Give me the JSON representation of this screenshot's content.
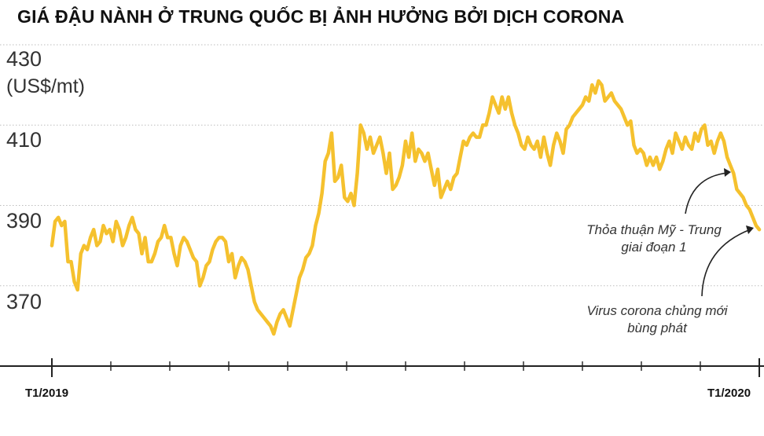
{
  "chart_data": {
    "type": "line",
    "title": "GIÁ ĐẬU NÀNH Ở TRUNG QUỐC BỊ ẢNH HƯỞNG BỞI DỊCH CORONA",
    "ylabel_unit": "(US$/mt)",
    "ylim": [
      350,
      430
    ],
    "yticks": [
      "430",
      "410",
      "390",
      "370"
    ],
    "ytick_values": [
      430,
      410,
      390,
      370
    ],
    "xtick_labels": [
      "T1/2019",
      "T1/2020"
    ],
    "grid": "horizontal-dotted",
    "color": "#F5C12E",
    "series": [
      {
        "values": [
          380,
          386,
          387,
          385,
          386,
          376,
          376,
          371,
          369,
          378,
          380,
          379,
          382,
          384,
          380,
          381,
          385,
          383,
          384,
          381,
          386,
          384,
          380,
          382,
          385,
          387,
          384,
          383,
          378,
          382,
          376,
          376,
          378,
          381,
          382,
          385,
          382,
          382,
          378,
          375,
          380,
          382,
          381,
          379,
          377,
          376,
          370,
          372,
          375,
          376,
          379,
          381,
          382,
          382,
          381,
          376,
          378,
          372,
          375,
          377,
          376,
          374,
          370,
          366,
          364,
          363,
          362,
          361,
          360,
          358,
          361,
          363,
          364,
          362,
          360,
          364,
          368,
          372,
          374,
          377,
          378,
          380,
          385,
          388,
          393,
          401,
          403,
          408,
          396,
          397,
          400,
          392,
          391,
          393,
          390,
          398,
          410,
          408,
          404,
          407,
          403,
          405,
          407,
          403,
          398,
          403,
          394,
          395,
          397,
          400,
          406,
          402,
          408,
          401,
          404,
          403,
          401,
          403,
          399,
          395,
          399,
          392,
          394,
          396,
          394,
          397,
          398,
          402,
          406,
          405,
          407,
          408,
          407,
          407,
          410,
          410,
          413,
          417,
          415,
          413,
          417,
          414,
          417,
          413,
          410,
          408,
          405,
          404,
          407,
          405,
          404,
          406,
          402,
          407,
          403,
          400,
          405,
          408,
          406,
          403,
          409,
          410,
          412,
          413,
          414,
          415,
          417,
          416,
          420,
          418,
          421,
          420,
          416,
          417,
          418,
          416,
          415,
          414,
          412,
          410,
          411,
          405,
          403,
          404,
          403,
          400,
          402,
          400,
          402,
          399,
          401,
          404,
          406,
          403,
          408,
          406,
          404,
          407,
          405,
          404,
          408,
          406,
          409,
          410,
          405,
          406,
          403,
          406,
          408,
          406,
          402,
          400,
          398,
          394,
          393,
          392,
          390,
          389,
          387,
          385,
          384
        ]
      }
    ]
  },
  "annotations": {
    "trade_deal": [
      "Thỏa thuận Mỹ - Trung",
      "giai đoạn 1"
    ],
    "virus": [
      "Virus corona chủng mới",
      "bùng phát"
    ]
  }
}
